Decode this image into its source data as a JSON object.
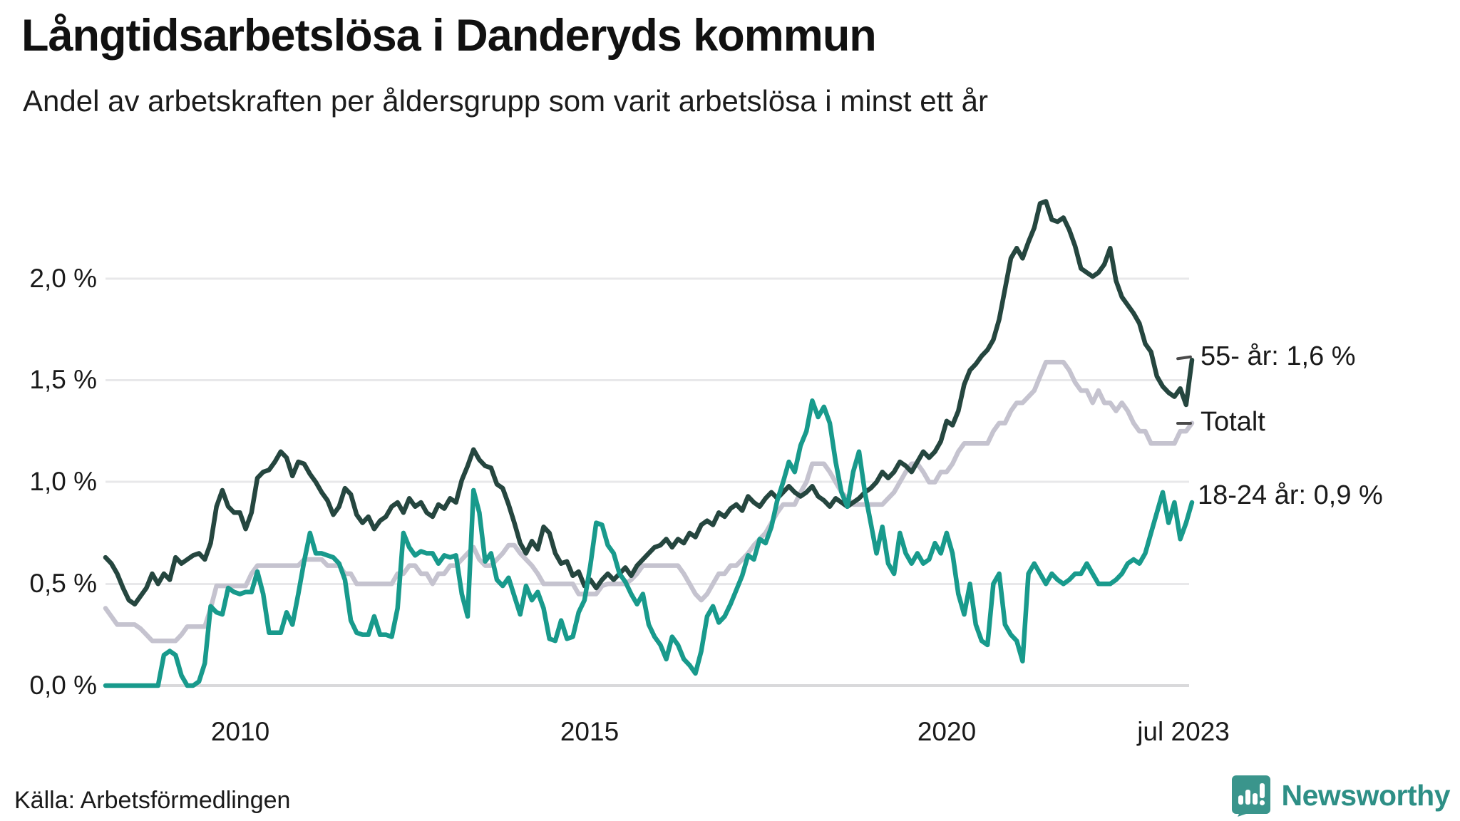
{
  "header": {
    "title": "Långtidsarbetslösa i Danderyds kommun",
    "subtitle": "Andel av arbetskraften per åldersgrupp som varit arbetslösa i minst ett år"
  },
  "footer": {
    "source": "Källa: Arbetsförmedlingen",
    "logo_text": "Newsworthy",
    "logo_icon": "newsworthy-speech-bubble-bar-chart-icon"
  },
  "colors": {
    "series_55": "#25463f",
    "series_totalt": "#c5c3cf",
    "series_18_24": "#189a8c",
    "gridline": "#e8e8ea",
    "axis_zero_line": "#d9d9db",
    "text": "#1a1a1a",
    "logo_teal": "#3a958c",
    "logo_text_teal": "#2e8f86"
  },
  "chart_data": {
    "type": "line",
    "title": "Långtidsarbetslösa i Danderyds kommun",
    "subtitle": "Andel av arbetskraften per åldersgrupp som varit arbetslösa i minst ett år",
    "unit": "%",
    "x_start": "2008-01",
    "x_end": "2023-07",
    "x_interval": "month",
    "ylim": [
      0.0,
      2.4
    ],
    "grid": "horizontal",
    "legend_position": "right-end-labels",
    "yticks": [
      {
        "value": 2.0,
        "label": "2,0 %"
      },
      {
        "value": 1.5,
        "label": "1,5 %"
      },
      {
        "value": 1.0,
        "label": "1,0 %"
      },
      {
        "value": 0.5,
        "label": "0,5 %"
      },
      {
        "value": 0.0,
        "label": "0,0 %"
      }
    ],
    "xticks": [
      {
        "year": 2010.0,
        "label": "2010"
      },
      {
        "year": 2015.0,
        "label": "2015"
      },
      {
        "year": 2020.0,
        "label": "2020"
      },
      {
        "year": 2023.54,
        "label": "jul 2023"
      }
    ],
    "end_labels": [
      {
        "series": "55",
        "text": "55- år: 1,6 %",
        "has_dash": true
      },
      {
        "series": "totalt",
        "text": "Totalt",
        "has_dash": true
      },
      {
        "series": "18_24",
        "text": "18-24 år: 0,9 %",
        "has_dash": false
      }
    ],
    "series": [
      {
        "id": "totalt",
        "name": "Totalt",
        "color": "#c5c3cf",
        "end_value": 1.3,
        "values": [
          0.38,
          0.34,
          0.3,
          0.3,
          0.3,
          0.3,
          0.28,
          0.25,
          0.22,
          0.22,
          0.22,
          0.22,
          0.22,
          0.25,
          0.29,
          0.29,
          0.29,
          0.29,
          0.38,
          0.49,
          0.49,
          0.49,
          0.49,
          0.49,
          0.49,
          0.55,
          0.59,
          0.59,
          0.59,
          0.59,
          0.59,
          0.59,
          0.59,
          0.59,
          0.62,
          0.62,
          0.62,
          0.62,
          0.59,
          0.59,
          0.59,
          0.55,
          0.55,
          0.5,
          0.5,
          0.5,
          0.5,
          0.5,
          0.5,
          0.5,
          0.55,
          0.55,
          0.59,
          0.59,
          0.55,
          0.55,
          0.5,
          0.55,
          0.55,
          0.59,
          0.59,
          0.62,
          0.65,
          0.68,
          0.62,
          0.59,
          0.59,
          0.62,
          0.65,
          0.69,
          0.69,
          0.65,
          0.62,
          0.59,
          0.55,
          0.5,
          0.5,
          0.5,
          0.5,
          0.5,
          0.5,
          0.45,
          0.45,
          0.45,
          0.45,
          0.49,
          0.5,
          0.5,
          0.5,
          0.5,
          0.52,
          0.55,
          0.59,
          0.59,
          0.59,
          0.59,
          0.59,
          0.59,
          0.59,
          0.55,
          0.5,
          0.45,
          0.42,
          0.45,
          0.5,
          0.55,
          0.55,
          0.59,
          0.59,
          0.62,
          0.65,
          0.69,
          0.72,
          0.75,
          0.8,
          0.85,
          0.89,
          0.89,
          0.89,
          0.95,
          1.0,
          1.09,
          1.09,
          1.09,
          1.05,
          1.0,
          0.95,
          0.92,
          0.89,
          0.89,
          0.89,
          0.89,
          0.89,
          0.89,
          0.92,
          0.95,
          1.0,
          1.05,
          1.09,
          1.09,
          1.05,
          1.0,
          1.0,
          1.05,
          1.05,
          1.09,
          1.15,
          1.19,
          1.19,
          1.19,
          1.19,
          1.19,
          1.25,
          1.29,
          1.29,
          1.35,
          1.39,
          1.39,
          1.42,
          1.45,
          1.52,
          1.59,
          1.59,
          1.59,
          1.59,
          1.55,
          1.49,
          1.45,
          1.45,
          1.39,
          1.45,
          1.39,
          1.39,
          1.35,
          1.39,
          1.35,
          1.29,
          1.25,
          1.25,
          1.19,
          1.19,
          1.19,
          1.19,
          1.19,
          1.25,
          1.25,
          1.29
        ]
      },
      {
        "id": "55",
        "name": "55- år",
        "color": "#25463f",
        "end_value": 1.6,
        "values": [
          0.63,
          0.6,
          0.55,
          0.48,
          0.42,
          0.4,
          0.44,
          0.48,
          0.55,
          0.5,
          0.55,
          0.52,
          0.63,
          0.6,
          0.62,
          0.64,
          0.65,
          0.62,
          0.7,
          0.88,
          0.96,
          0.88,
          0.85,
          0.85,
          0.77,
          0.85,
          1.02,
          1.05,
          1.06,
          1.1,
          1.15,
          1.12,
          1.03,
          1.1,
          1.09,
          1.04,
          1.0,
          0.95,
          0.91,
          0.84,
          0.88,
          0.97,
          0.94,
          0.84,
          0.8,
          0.83,
          0.77,
          0.81,
          0.83,
          0.88,
          0.9,
          0.85,
          0.92,
          0.88,
          0.9,
          0.85,
          0.83,
          0.89,
          0.87,
          0.92,
          0.9,
          1.01,
          1.08,
          1.16,
          1.11,
          1.08,
          1.07,
          0.99,
          0.97,
          0.89,
          0.8,
          0.7,
          0.65,
          0.71,
          0.67,
          0.78,
          0.75,
          0.65,
          0.6,
          0.61,
          0.54,
          0.56,
          0.49,
          0.52,
          0.48,
          0.52,
          0.55,
          0.52,
          0.55,
          0.58,
          0.54,
          0.59,
          0.62,
          0.65,
          0.68,
          0.69,
          0.72,
          0.68,
          0.72,
          0.7,
          0.75,
          0.73,
          0.79,
          0.81,
          0.79,
          0.85,
          0.83,
          0.87,
          0.89,
          0.86,
          0.93,
          0.9,
          0.88,
          0.92,
          0.95,
          0.92,
          0.95,
          0.98,
          0.95,
          0.93,
          0.95,
          0.98,
          0.93,
          0.91,
          0.88,
          0.92,
          0.9,
          0.88,
          0.9,
          0.92,
          0.95,
          0.97,
          1.0,
          1.05,
          1.02,
          1.05,
          1.1,
          1.08,
          1.05,
          1.1,
          1.15,
          1.12,
          1.15,
          1.2,
          1.3,
          1.28,
          1.35,
          1.48,
          1.55,
          1.58,
          1.62,
          1.65,
          1.7,
          1.8,
          1.95,
          2.1,
          2.15,
          2.1,
          2.18,
          2.25,
          2.37,
          2.38,
          2.29,
          2.28,
          2.3,
          2.24,
          2.16,
          2.05,
          2.03,
          2.01,
          2.03,
          2.07,
          2.15,
          1.99,
          1.91,
          1.87,
          1.83,
          1.78,
          1.68,
          1.64,
          1.52,
          1.47,
          1.44,
          1.42,
          1.46,
          1.38,
          1.6
        ]
      },
      {
        "id": "18_24",
        "name": "18-24 år",
        "color": "#189a8c",
        "end_value": 0.9,
        "values": [
          0.0,
          0.0,
          0.0,
          0.0,
          0.0,
          0.0,
          0.0,
          0.0,
          0.0,
          0.0,
          0.15,
          0.17,
          0.15,
          0.05,
          0.0,
          0.0,
          0.02,
          0.11,
          0.39,
          0.36,
          0.35,
          0.48,
          0.46,
          0.45,
          0.46,
          0.46,
          0.56,
          0.45,
          0.26,
          0.26,
          0.26,
          0.36,
          0.3,
          0.45,
          0.61,
          0.75,
          0.65,
          0.65,
          0.64,
          0.63,
          0.6,
          0.52,
          0.32,
          0.26,
          0.25,
          0.25,
          0.34,
          0.25,
          0.25,
          0.24,
          0.38,
          0.75,
          0.68,
          0.64,
          0.66,
          0.65,
          0.65,
          0.6,
          0.64,
          0.63,
          0.64,
          0.45,
          0.34,
          0.96,
          0.85,
          0.61,
          0.65,
          0.52,
          0.49,
          0.53,
          0.44,
          0.35,
          0.49,
          0.42,
          0.46,
          0.38,
          0.23,
          0.22,
          0.32,
          0.23,
          0.24,
          0.36,
          0.42,
          0.59,
          0.8,
          0.79,
          0.69,
          0.65,
          0.55,
          0.51,
          0.45,
          0.4,
          0.45,
          0.3,
          0.24,
          0.2,
          0.13,
          0.24,
          0.2,
          0.13,
          0.1,
          0.06,
          0.17,
          0.34,
          0.39,
          0.31,
          0.34,
          0.4,
          0.47,
          0.54,
          0.64,
          0.62,
          0.72,
          0.7,
          0.78,
          0.91,
          1.0,
          1.1,
          1.05,
          1.18,
          1.25,
          1.4,
          1.32,
          1.37,
          1.29,
          1.1,
          0.95,
          0.88,
          1.05,
          1.15,
          0.95,
          0.8,
          0.65,
          0.78,
          0.6,
          0.55,
          0.75,
          0.65,
          0.6,
          0.65,
          0.6,
          0.62,
          0.7,
          0.65,
          0.75,
          0.65,
          0.45,
          0.35,
          0.5,
          0.3,
          0.22,
          0.2,
          0.5,
          0.55,
          0.3,
          0.25,
          0.22,
          0.12,
          0.55,
          0.6,
          0.55,
          0.5,
          0.55,
          0.52,
          0.5,
          0.52,
          0.55,
          0.55,
          0.6,
          0.55,
          0.5,
          0.5,
          0.5,
          0.52,
          0.55,
          0.6,
          0.62,
          0.6,
          0.65,
          0.75,
          0.85,
          0.95,
          0.8,
          0.9,
          0.72,
          0.8,
          0.9
        ]
      }
    ]
  }
}
